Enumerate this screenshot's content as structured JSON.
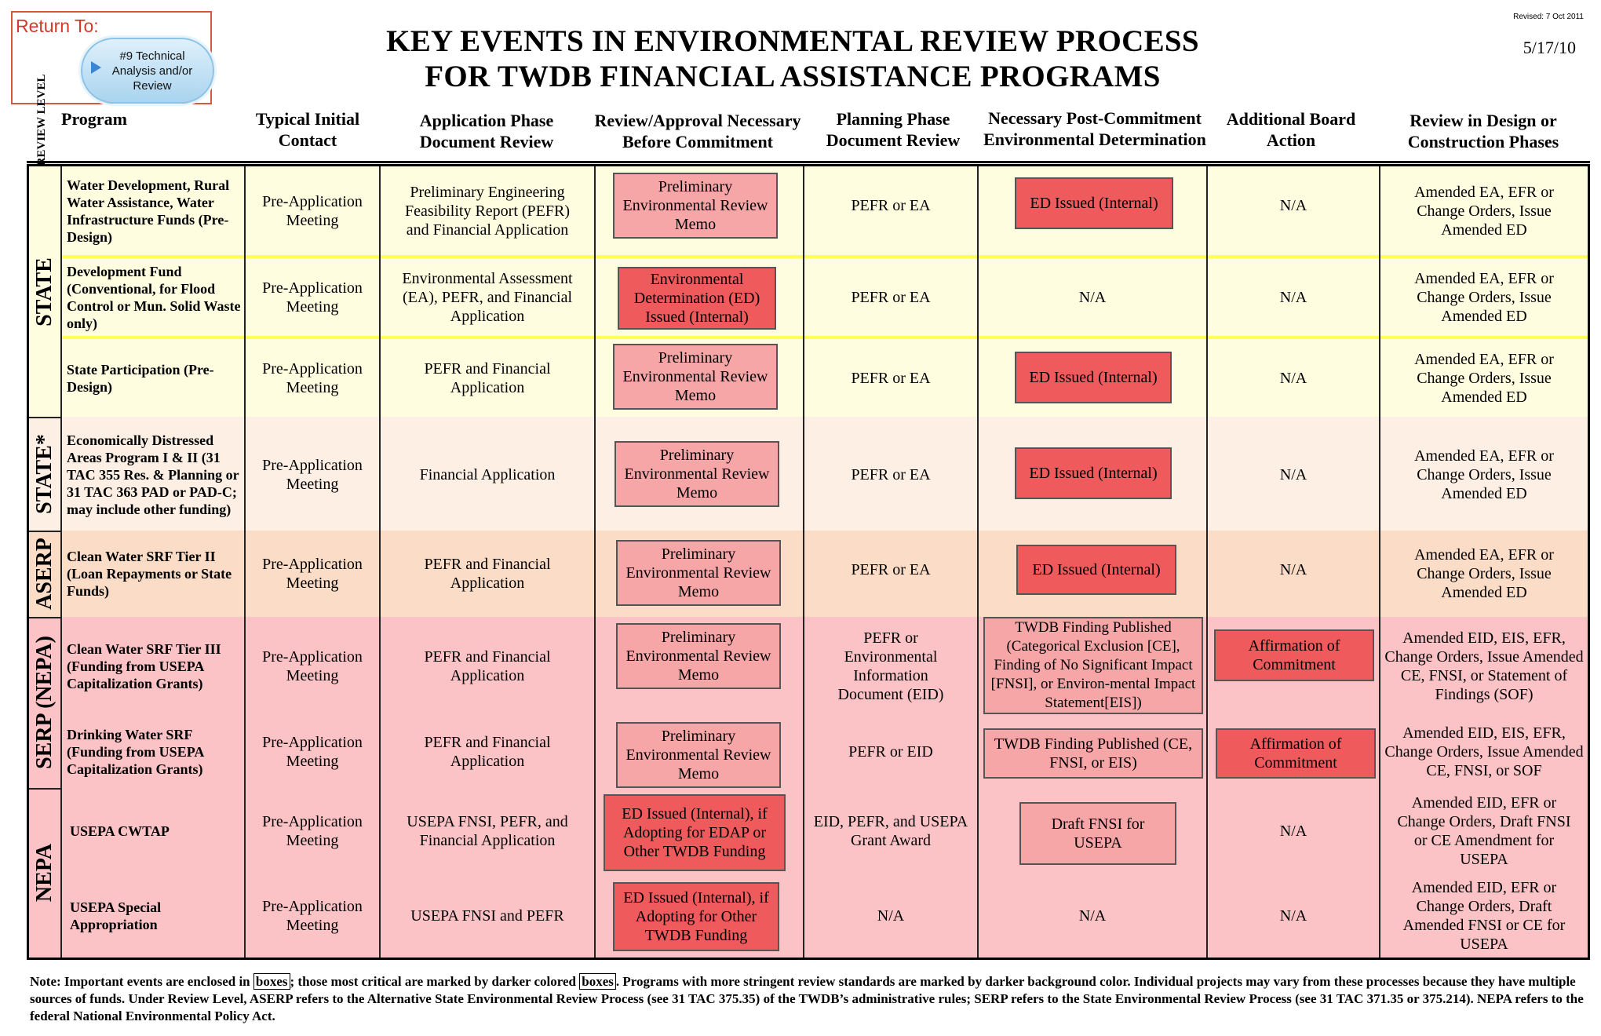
{
  "return_to": {
    "label": "Return To:",
    "button": "#9 Technical Analysis and/or Review"
  },
  "title": {
    "line1": "KEY EVENTS IN  ENVIRONMENTAL REVIEW PROCESS",
    "line2": "FOR TWDB FINANCIAL ASSISTANCE PROGRAMS"
  },
  "revised": "Revised: 7 Oct 2011",
  "date": "5/17/10",
  "headers": {
    "review_level": "REVIEW LEVEL",
    "program": "Program",
    "initial_contact": "Typical Initial Contact",
    "app_phase": "Application Phase Document Review",
    "review_approval": "Review/Approval Necessary Before Commitment",
    "planning": "Planning Phase Document Review",
    "post_commitment": "Necessary Post-Commitment Environmental Determination",
    "board": "Additional Board Action",
    "design": "Review in Design or Construction Phases"
  },
  "levels": [
    "STATE",
    "STATE*",
    "ASERP",
    "SERP (NEPA)",
    "NEPA"
  ],
  "rows": [
    {
      "program": "Water Development, Rural Water Assistance, Water Infrastructure Funds (Pre-Design)",
      "contact": "Pre-Application Meeting",
      "app": "Preliminary Engineering Feasibility Report (PEFR) and Financial Application",
      "review": "Preliminary Environmental Review Memo",
      "planning": "PEFR or  EA",
      "post": "ED Issued (Internal)",
      "board": "N/A",
      "design": "Amended EA, EFR  or Change Orders, Issue Amended ED"
    },
    {
      "program": "Development Fund (Conventional, for Flood Control or Mun. Solid Waste only)",
      "contact": "Pre-Application Meeting",
      "app": "Environmental Assessment  (EA), PEFR, and Financial Application",
      "review": "Environmental Determination (ED) Issued (Internal)",
      "planning": "PEFR or  EA",
      "post": "N/A",
      "board": "N/A",
      "design": "Amended EA, EFR  or Change Orders, Issue Amended ED"
    },
    {
      "program": "State Participation (Pre-Design)",
      "contact": "Pre-Application Meeting",
      "app": "PEFR and Financial Application",
      "review": "Preliminary Environmental Review Memo",
      "planning": "PEFR or  EA",
      "post": "ED Issued (Internal)",
      "board": "N/A",
      "design": "Amended EA, EFR  or Change Orders, Issue Amended ED"
    },
    {
      "program": "Economically Distressed Areas Program I & II (31 TAC 355 Res. & Planning or 31 TAC 363 PAD or PAD-C; may include other funding)",
      "contact": "Pre-Application Meeting",
      "app": "Financial Application",
      "review": "Preliminary Environmental Review Memo",
      "planning": "PEFR or  EA",
      "post": "ED Issued (Internal)",
      "board": "N/A",
      "design": "Amended EA, EFR  or Change Orders, Issue Amended ED"
    },
    {
      "program": "Clean Water SRF Tier II (Loan Repayments or State Funds)",
      "contact": "Pre-Application Meeting",
      "app": "PEFR and Financial Application",
      "review": "Preliminary Environmental Review Memo",
      "planning": "PEFR or  EA",
      "post": "ED Issued (Internal)",
      "board": "N/A",
      "design": "Amended EA, EFR  or Change Orders, Issue Amended ED"
    },
    {
      "program": "Clean Water SRF Tier III (Funding from USEPA Capitalization Grants)",
      "contact": "Pre-Application Meeting",
      "app": "PEFR and Financial Application",
      "review": "Preliminary Environmental Review Memo",
      "planning": "PEFR or Environmental Information Document (EID)",
      "post": "TWDB Finding Published (Categorical Exclusion  [CE], Finding of No Significant Impact [FNSI], or Environ-mental Impact Statement[EIS])",
      "board": "Affirmation of Commitment",
      "design": "Amended EID, EIS, EFR, Change Orders, Issue Amended CE, FNSI, or Statement of Findings (SOF)"
    },
    {
      "program": "Drinking Water SRF (Funding from USEPA Capitalization Grants)",
      "contact": "Pre-Application Meeting",
      "app": "PEFR and Financial Application",
      "review": "Preliminary Environmental Review Memo",
      "planning": "PEFR or EID",
      "post": "TWDB Finding Published (CE, FNSI, or EIS)",
      "board": "Affirmation of Commitment",
      "design": "Amended EID, EIS, EFR, Change Orders, Issue Amended CE, FNSI, or SOF"
    },
    {
      "program": "USEPA CWTAP",
      "contact": "Pre-Application Meeting",
      "app": "USEPA FNSI, PEFR, and Financial Application",
      "review": "ED Issued (Internal), if Adopting for EDAP or Other TWDB Funding",
      "planning": "EID, PEFR, and USEPA Grant Award",
      "post": "Draft FNSI for  USEPA",
      "board": "N/A",
      "design": "Amended EID, EFR  or Change Orders, Draft FNSI or CE Amendment for USEPA"
    },
    {
      "program": "USEPA Special Appropriation",
      "contact": "Pre-Application Meeting",
      "app": "USEPA FNSI and PEFR",
      "review": "ED Issued (Internal), if Adopting for Other TWDB Funding",
      "planning": "N/A",
      "post": "N/A",
      "board": "N/A",
      "design": "Amended EID, EFR  or Change Orders, Draft Amended FNSI or CE for USEPA"
    }
  ],
  "note": {
    "p1": "Note:  Important events are enclosed in ",
    "b1": "boxes",
    "p2": "; those most critical are marked by darker colored ",
    "b2": "boxes",
    "p3": ".  Programs with more stringent review standards are marked by darker background color. Individual projects may vary from these processes because they have multiple sources of funds.  Under Review Level, ASERP refers to the Alternative State Environmental Review Process (see 31 TAC 375.35) of the TWDB’s administrative rules; SERP refers to the State Environmental Review Process (see 31 TAC 371.35 or 375.214).  NEPA refers to the federal National Environmental Policy Act."
  },
  "colors": {
    "state_bg": "#fffde0",
    "state_star_bg": "#fdefe4",
    "aserp_bg": "#fbdcc6",
    "serp_bg": "#fbc3c6",
    "nepa_bg": "#fbc3c6",
    "dark_box": "#ef5a5c",
    "light_box": "#f7a6a8"
  }
}
